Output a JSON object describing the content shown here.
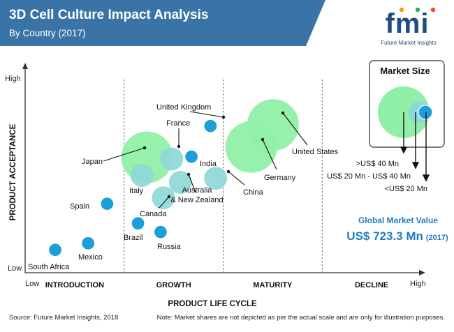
{
  "header": {
    "title": "3D Cell Culture Impact Analysis",
    "subtitle": "By Country (2017)",
    "bg_color": "#3a74a6"
  },
  "logo": {
    "letters": "fmi",
    "tagline": "Future Market Insights",
    "color": "#1f4e79"
  },
  "chart_data": {
    "type": "scatter",
    "title": "3D Cell Culture Impact Analysis",
    "subtitle": "By Country (2017)",
    "xlabel": "PRODUCT LIFE CYCLE",
    "ylabel": "PRODUCT ACCEPTANCE",
    "x_low_label": "Low",
    "x_high_label": "High",
    "y_low_label": "Low",
    "y_high_label": "High",
    "xlim": [
      0,
      100
    ],
    "ylim": [
      0,
      100
    ],
    "stages": [
      "INTRODUCTION",
      "GROWTH",
      "MATURITY",
      "DECLINE"
    ],
    "stage_bounds": [
      0,
      25,
      50,
      75,
      100
    ],
    "grid": false,
    "colors": {
      "large": "#90f0a8",
      "medium": "#8ed8d8",
      "small": "#1c9ed8",
      "small_stroke": "#ffffff"
    },
    "points": [
      {
        "name": "South Africa",
        "x": 7.6,
        "y": 11.1,
        "size": "<US$ 20 Mn"
      },
      {
        "name": "Mexico",
        "x": 15.9,
        "y": 14.3,
        "size": "<US$ 20 Mn"
      },
      {
        "name": "Spain",
        "x": 20.7,
        "y": 33.5,
        "size": "<US$ 20 Mn"
      },
      {
        "name": "Brazil",
        "x": 28.5,
        "y": 24.0,
        "size": "<US$ 20 Mn"
      },
      {
        "name": "Russia",
        "x": 34.2,
        "y": 19.8,
        "size": "<US$ 20 Mn"
      },
      {
        "name": "India",
        "x": 42.0,
        "y": 56.4,
        "size": "<US$ 20 Mn"
      },
      {
        "name": "United Kingdom",
        "x": 46.8,
        "y": 71.3,
        "size": "<US$ 20 Mn"
      },
      {
        "name": "Italy",
        "x": 29.5,
        "y": 47.3,
        "size": "US$ 20 Mn - US$ 40 Mn"
      },
      {
        "name": "France",
        "x": 37.0,
        "y": 55.3,
        "size": "US$ 20 Mn - US$ 40 Mn"
      },
      {
        "name": "Australia & New Zealand",
        "x": 39.2,
        "y": 43.9,
        "size": "US$ 20 Mn - US$ 40 Mn"
      },
      {
        "name": "Canada",
        "x": 34.9,
        "y": 36.4,
        "size": "US$ 20 Mn - US$ 40 Mn"
      },
      {
        "name": "China",
        "x": 48.1,
        "y": 45.9,
        "size": "US$ 20 Mn - US$ 40 Mn"
      },
      {
        "name": "Japan",
        "x": 30.8,
        "y": 56.1,
        "size": ">US$ 40 Mn"
      },
      {
        "name": "Germany",
        "x": 57.1,
        "y": 61.1,
        "size": ">US$ 40 Mn"
      },
      {
        "name": "United States",
        "x": 62.6,
        "y": 71.8,
        "size": ">US$ 40 Mn"
      }
    ]
  },
  "legend": {
    "title": "Market Size",
    "items": [
      ">US$ 40 Mn",
      "US$ 20 Mn - US$ 40 Mn",
      "<US$ 20 Mn"
    ]
  },
  "global_value": {
    "label": "Global Market Value",
    "value": "US$ 723.3 Mn",
    "year": "(2017)",
    "color": "#1f7cc2"
  },
  "footer": {
    "source": "Source: Future Market Insights, 2018",
    "note": "Note: Market shares are not depicted as per the actual scale and are only for illustration purposes."
  }
}
